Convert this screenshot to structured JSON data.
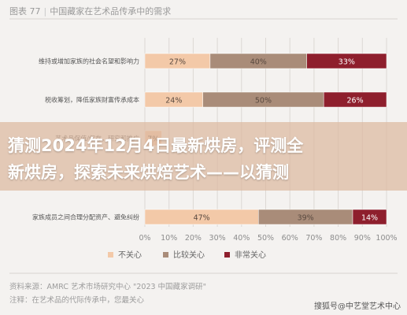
{
  "header": {
    "figure_label": "图表 77",
    "separator": "|",
    "figure_title": "中国藏家在艺术品传承中的需求"
  },
  "chart_data": {
    "type": "bar",
    "orientation": "horizontal-stacked-100",
    "categories": [
      "维持或增加家族的社会名望和影响力",
      "税收筹划，降低家族财富传承成本",
      "艺术品保值/保存，研究和推广",
      "",
      "家族成员之间合理分配资产、避免纠纷"
    ],
    "series": [
      {
        "name": "不关心",
        "color": "#f3c9a8",
        "values": [
          27,
          24,
          7,
          null,
          47
        ]
      },
      {
        "name": "比较关心",
        "color": "#a98c79",
        "values": [
          40,
          50,
          null,
          null,
          39
        ]
      },
      {
        "name": "非常关心",
        "color": "#8e1f2d",
        "values": [
          33,
          26,
          null,
          null,
          14
        ]
      }
    ],
    "value_labels": [
      [
        "27%",
        "40%",
        "33%"
      ],
      [
        "24%",
        "50%",
        "26%"
      ],
      [
        "7%",
        "",
        ""
      ],
      [
        "",
        "",
        ""
      ],
      [
        "47%",
        "39%",
        "14%"
      ]
    ],
    "xlim": [
      0,
      100
    ],
    "x_ticks": [
      "0%",
      "10%",
      "20%",
      "30%",
      "40%",
      "50%",
      "60%",
      "70%",
      "80%",
      "90%",
      "100%"
    ],
    "legend_position": "bottom-left",
    "grid": true
  },
  "overlay": {
    "line1": "猜测2024年12月4日最新烘房，评测全",
    "line2": "新烘房，探索未来烘焙艺术——以猜测"
  },
  "source": {
    "line1": "资料来源：AMRC 艺术市场研究中心 \"2023 中国藏家调研\"",
    "line2": "注释：在艺术品的代际传承中，您最关心"
  },
  "watermark": "搜狐号@中艺堂艺术中心"
}
